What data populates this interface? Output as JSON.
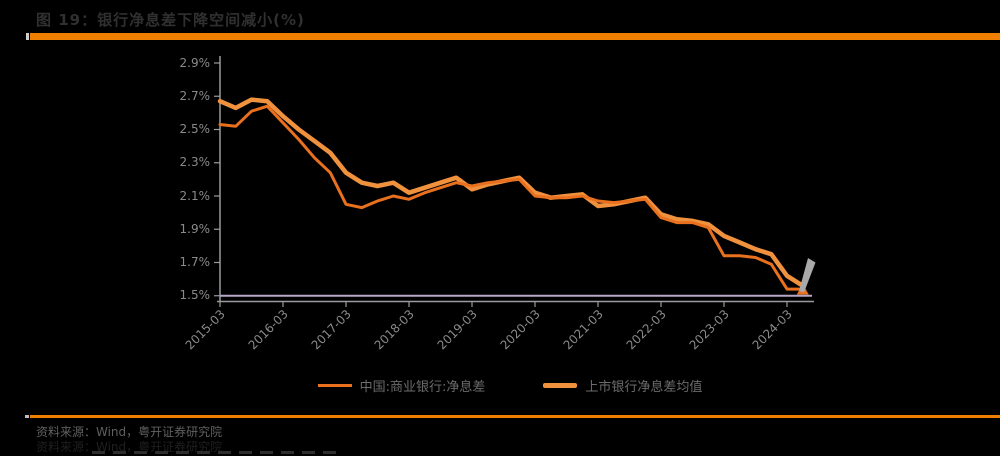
{
  "header": {
    "title": "图 19：银行净息差下降空间减小(%)"
  },
  "theme": {
    "accent_orange": "#EE7F01",
    "axis_gray": "#9b9b9b",
    "axis_lavender": "#b7a6c6",
    "tick_text_gray": "#8a8a8a"
  },
  "footer": {
    "source": "资料来源：Wind，粤开证券研究院",
    "source_shadow": "资料来源：Wind，粤开证券研究院"
  },
  "chart_data": {
    "type": "line",
    "x": [
      "2015-03",
      "2015-06",
      "2015-09",
      "2015-12",
      "2016-03",
      "2016-06",
      "2016-09",
      "2016-12",
      "2017-03",
      "2017-06",
      "2017-09",
      "2017-12",
      "2018-03",
      "2018-06",
      "2018-09",
      "2018-12",
      "2019-03",
      "2019-06",
      "2019-09",
      "2019-12",
      "2020-03",
      "2020-06",
      "2020-09",
      "2020-12",
      "2021-03",
      "2021-06",
      "2021-09",
      "2021-12",
      "2022-03",
      "2022-06",
      "2022-09",
      "2022-12",
      "2023-03",
      "2023-06",
      "2023-09",
      "2023-12",
      "2024-03",
      "2024-06"
    ],
    "x_tick_labels": [
      "2015-03",
      "2016-03",
      "2017-03",
      "2018-03",
      "2019-03",
      "2020-03",
      "2021-03",
      "2022-03",
      "2023-03",
      "2024-03"
    ],
    "y_tick_labels": [
      "2.9%",
      "2.7%",
      "2.5%",
      "2.3%",
      "2.1%",
      "1.9%",
      "1.7%",
      "1.5%"
    ],
    "ylim": [
      1.5,
      2.9
    ],
    "grid": false,
    "legend_position": "bottom-center",
    "series": [
      {
        "name": "中国:商业银行:净息差",
        "color": "#e8701e",
        "width": 3,
        "end_marker": true,
        "values": [
          2.53,
          2.52,
          2.61,
          2.64,
          2.54,
          2.44,
          2.33,
          2.24,
          2.05,
          2.03,
          2.07,
          2.1,
          2.08,
          2.12,
          2.15,
          2.18,
          2.16,
          2.18,
          2.19,
          2.2,
          2.1,
          2.09,
          2.09,
          2.1,
          2.07,
          2.06,
          2.07,
          2.08,
          1.97,
          1.94,
          1.94,
          1.91,
          1.74,
          1.74,
          1.73,
          1.69,
          1.54,
          1.54
        ]
      },
      {
        "name": "上市银行净息差均值",
        "color": "#f0913e",
        "width": 4.5,
        "end_marker": false,
        "values": [
          2.67,
          2.63,
          2.68,
          2.67,
          2.58,
          2.5,
          2.43,
          2.36,
          2.24,
          2.18,
          2.16,
          2.18,
          2.12,
          2.15,
          2.18,
          2.21,
          2.14,
          2.17,
          2.19,
          2.21,
          2.12,
          2.09,
          2.1,
          2.11,
          2.04,
          2.05,
          2.07,
          2.09,
          1.99,
          1.96,
          1.95,
          1.93,
          1.86,
          1.82,
          1.78,
          1.75,
          1.62,
          1.56
        ]
      }
    ],
    "annotations": [
      {
        "type": "cursor-arrow",
        "color": "#a9a9a9",
        "near": "2024-06"
      }
    ]
  }
}
